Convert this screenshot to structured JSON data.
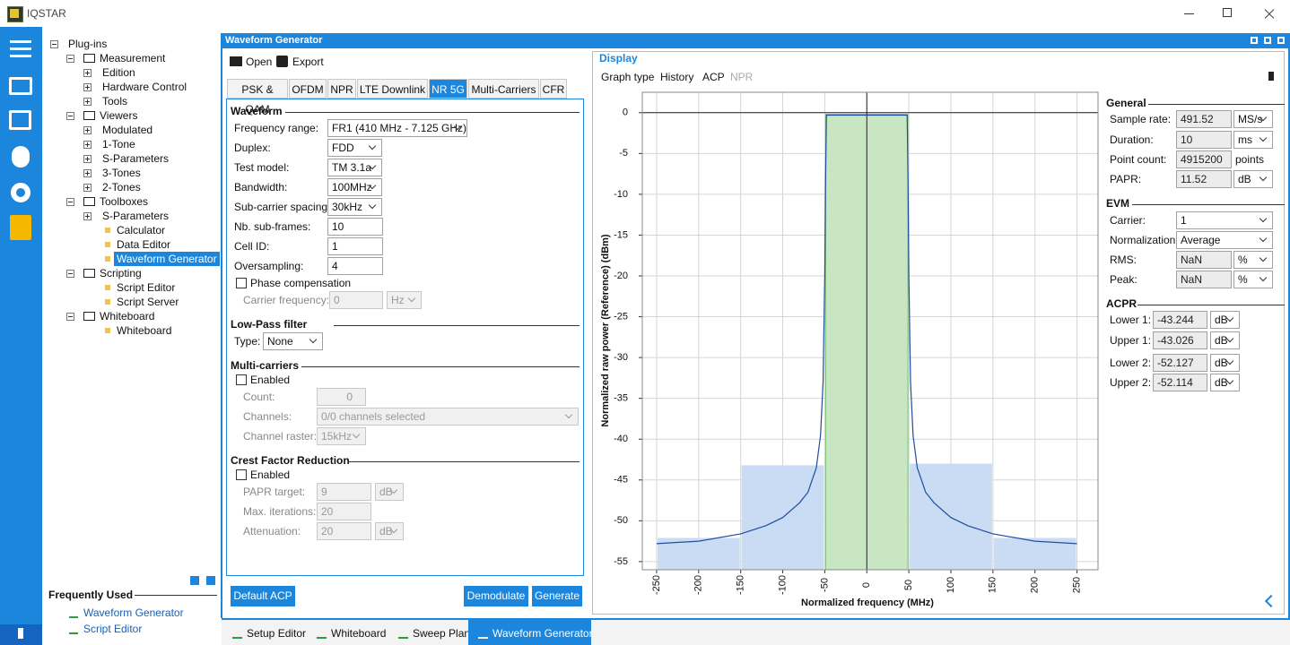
{
  "app": {
    "title": "IQSTAR"
  },
  "tree": {
    "label": "Plug-ins",
    "children": [
      {
        "label": "Measurement",
        "children": [
          {
            "label": "Edition",
            "collapsed": true
          },
          {
            "label": "Hardware Control",
            "collapsed": true
          },
          {
            "label": "Tools",
            "collapsed": true
          }
        ]
      },
      {
        "label": "Viewers",
        "children": [
          {
            "label": "Modulated",
            "collapsed": true
          },
          {
            "label": "1-Tone",
            "collapsed": true
          },
          {
            "label": "S-Parameters",
            "collapsed": true
          },
          {
            "label": "3-Tones",
            "collapsed": true
          },
          {
            "label": "2-Tones",
            "collapsed": true
          }
        ]
      },
      {
        "label": "Toolboxes",
        "children": [
          {
            "label": "S-Parameters",
            "collapsed": true
          },
          {
            "label": "Calculator"
          },
          {
            "label": "Data Editor"
          },
          {
            "label": "Waveform Generator",
            "selected": true
          }
        ]
      },
      {
        "label": "Scripting",
        "children": [
          {
            "label": "Script Editor"
          },
          {
            "label": "Script Server"
          }
        ]
      },
      {
        "label": "Whiteboard",
        "children": [
          {
            "label": "Whiteboard"
          }
        ]
      }
    ]
  },
  "frequently_used": {
    "title": "Frequently Used",
    "items": [
      "Waveform Generator",
      "Script Editor"
    ]
  },
  "window": {
    "title": "Waveform Generator"
  },
  "toolbar": [
    "Open",
    "Export"
  ],
  "tabs": {
    "items": [
      "PSK & QAM",
      "OFDM",
      "NPR",
      "LTE Downlink",
      "NR 5G",
      "Multi-Carriers",
      "CFR"
    ],
    "selected": 4
  },
  "form": {
    "waveform": {
      "title": "Waveform",
      "rows": [
        {
          "label": "Frequency range:",
          "value": "FR1 (410 MHz - 7.125 GHz)"
        },
        {
          "label": "Duplex:",
          "value": "FDD"
        },
        {
          "label": "Test model:",
          "value": "TM 3.1a"
        },
        {
          "label": "Bandwidth:",
          "value": "100MHz"
        },
        {
          "label": "Sub-carrier spacing:",
          "value": "30kHz"
        },
        {
          "label": "Nb. sub-frames:",
          "value": "10"
        },
        {
          "label": "Cell ID:",
          "value": "1"
        },
        {
          "label": "Oversampling:",
          "value": "4"
        }
      ],
      "phase": "Phase compensation",
      "carrier": {
        "label": "Carrier frequency:",
        "value": "0",
        "unit": "Hz"
      }
    },
    "lowpass": {
      "title": "Low-Pass filter",
      "label": "Type:",
      "value": "None"
    },
    "multi": {
      "title": "Multi-carriers",
      "enabled": "Enabled",
      "rows": [
        {
          "label": "Count:",
          "value": "0"
        },
        {
          "label": "Channels:",
          "value": "0/0 channels selected"
        },
        {
          "label": "Channel raster:",
          "value": "15kHz"
        }
      ]
    },
    "cfr": {
      "title": "Crest Factor Reduction",
      "enabled": "Enabled",
      "rows": [
        {
          "label": "PAPR target:",
          "value": "9",
          "unit": "dB"
        },
        {
          "label": "Max. iterations:",
          "value": "20"
        },
        {
          "label": "Attenuation:",
          "value": "20",
          "unit": "dB"
        }
      ]
    }
  },
  "buttons": [
    "Default ACP",
    "Demodulate",
    "Generate"
  ],
  "display": {
    "title": "Display",
    "menu": [
      "Graph type",
      "History",
      "ACP",
      "NPR"
    ],
    "general": {
      "title": "General",
      "rows": [
        {
          "label": "Sample rate:",
          "value": "491.52",
          "unit": "MS/s"
        },
        {
          "label": "Duration:",
          "value": "10",
          "unit": "ms"
        },
        {
          "label": "Point count:",
          "value": "4915200",
          "unit": "points"
        },
        {
          "label": "PAPR:",
          "value": "11.52",
          "unit": "dB"
        }
      ]
    },
    "evm": {
      "title": "EVM",
      "rows": [
        {
          "label": "Carrier:",
          "value": "1"
        },
        {
          "label": "Normalization:",
          "value": "Average"
        },
        {
          "label": "RMS:",
          "value": "NaN",
          "unit": "%"
        },
        {
          "label": "Peak:",
          "value": "NaN",
          "unit": "%"
        }
      ]
    },
    "acpr": {
      "title": "ACPR",
      "rows": [
        {
          "label": "Lower 1:",
          "value": "-43.244",
          "unit": "dB"
        },
        {
          "label": "Upper 1:",
          "value": "-43.026",
          "unit": "dB"
        },
        {
          "label": "Lower 2:",
          "value": "-52.127",
          "unit": "dB"
        },
        {
          "label": "Upper 2:",
          "value": "-52.114",
          "unit": "dB"
        }
      ]
    }
  },
  "chart_data": {
    "type": "acp",
    "ylabel": "Normalized raw power (Reference) (dBm)",
    "xlabel": "Normalized frequency (MHz)",
    "xlim": [
      -267,
      275
    ],
    "ylim": [
      -56,
      2.5
    ],
    "xticks": [
      -250,
      -200,
      -150,
      -100,
      -50,
      0,
      50,
      100,
      150,
      200,
      250
    ],
    "yticks": [
      0,
      -5,
      -10,
      -15,
      -20,
      -25,
      -30,
      -35,
      -40,
      -45,
      -50,
      -55
    ],
    "grid": true,
    "bars": {
      "edges": [
        -250,
        -150,
        -50,
        50,
        150,
        250
      ],
      "values": [
        -52.1,
        -43.2,
        -0.2,
        -43.0,
        -52.1
      ],
      "colors": [
        "#c9dcf4",
        "#c9dcf4",
        "#c8e6c2",
        "#c9dcf4",
        "#c9dcf4"
      ]
    },
    "series": [
      {
        "color": "#1f4e9c",
        "x": [
          -250,
          -200,
          -150,
          -120,
          -100,
          -80,
          -70,
          -60,
          -55,
          -52,
          -50,
          -49,
          -48,
          48,
          49,
          50,
          52,
          55,
          60,
          70,
          80,
          100,
          120,
          150,
          200,
          250
        ],
        "values": [
          -52.8,
          -52.5,
          -51.6,
          -50.6,
          -49.6,
          -47.8,
          -46.5,
          -43.5,
          -39.5,
          -33,
          -20,
          -8,
          -0.3,
          -0.3,
          -8,
          -20,
          -33,
          -39.5,
          -43.5,
          -46.5,
          -47.8,
          -49.6,
          -50.6,
          -51.6,
          -52.5,
          -52.8
        ]
      }
    ]
  },
  "bottom_tabs": {
    "items": [
      "Setup Editor",
      "Whiteboard",
      "Sweep Plan",
      "Waveform Generator"
    ],
    "selected": 3
  }
}
